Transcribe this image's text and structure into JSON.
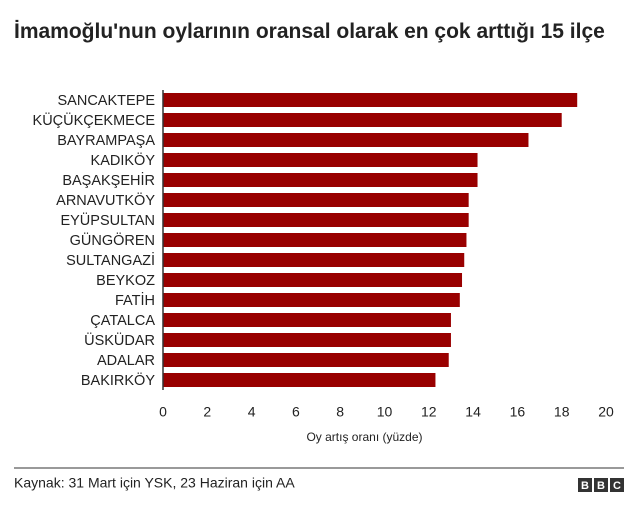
{
  "chart_data": {
    "type": "bar",
    "orientation": "horizontal",
    "title": "İmamoğlu'nun oylarının oransal olarak en çok arttığı 15 ilçe",
    "categories": [
      "SANCAKTEPE",
      "KÜÇÜKÇEKMECE",
      "BAYRAMPAŞA",
      "KADIKÖY",
      "BAŞAKŞEHİR",
      "ARNAVUTKÖY",
      "EYÜPSULTAN",
      "GÜNGÖREN",
      "SULTANGAZİ",
      "BEYKOZ",
      "FATİH",
      "ÇATALCA",
      "ÜSKÜDAR",
      "ADALAR",
      "BAKIRKÖY"
    ],
    "values": [
      18.7,
      18.0,
      16.5,
      14.2,
      14.2,
      13.8,
      13.8,
      13.7,
      13.6,
      13.5,
      13.4,
      13.0,
      13.0,
      12.9,
      12.3
    ],
    "color": "#990000",
    "xlim": [
      0,
      20
    ],
    "xticks": [
      0,
      2,
      4,
      6,
      8,
      10,
      12,
      14,
      16,
      18,
      20
    ],
    "xlabel": "Oy artış oranı (yüzde)",
    "grid": false,
    "source": "Kaynak: 31 Mart için YSK, 23 Haziran için AA",
    "logo": [
      "B",
      "B",
      "C"
    ]
  }
}
